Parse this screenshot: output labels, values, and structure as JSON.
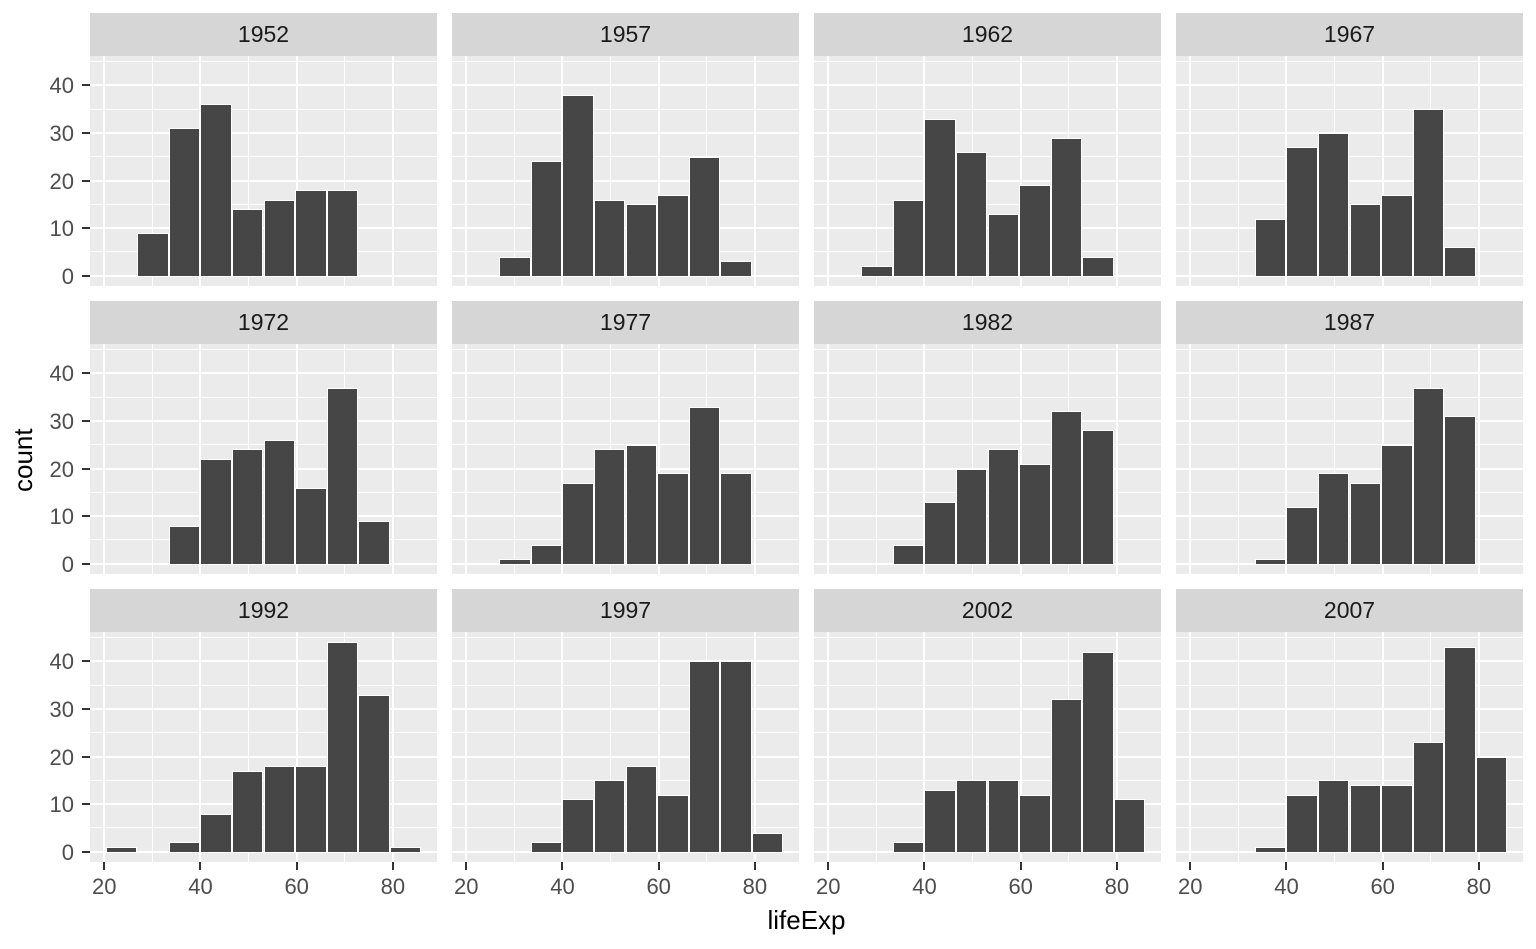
{
  "chart_data": {
    "type": "bar",
    "subtype": "faceted-histogram",
    "title": "",
    "xlabel": "lifeExp",
    "ylabel": "count",
    "legend": "none",
    "grid": "on",
    "x_tick_labels": [
      "20",
      "40",
      "60",
      "80"
    ],
    "x_tick_values": [
      20,
      40,
      60,
      80
    ],
    "x_minor_gridlines": [
      30,
      50,
      70
    ],
    "y_tick_labels": [
      "0",
      "10",
      "20",
      "30",
      "40"
    ],
    "y_tick_values": [
      0,
      10,
      20,
      30,
      40
    ],
    "y_minor_gridlines": [
      5,
      15,
      25,
      35,
      45
    ],
    "x_domain": [
      17.04,
      89.16
    ],
    "y_domain": [
      -2.2,
      46.2
    ],
    "bin_edges": [
      20.32,
      26.88,
      33.43,
      39.99,
      46.55,
      53.1,
      59.66,
      66.21,
      72.77,
      79.33,
      85.88
    ],
    "facets": [
      {
        "year": "1952",
        "counts": [
          0,
          9,
          31,
          36,
          14,
          16,
          18,
          18,
          0,
          0
        ]
      },
      {
        "year": "1957",
        "counts": [
          0,
          4,
          24,
          38,
          16,
          15,
          17,
          25,
          3,
          0
        ]
      },
      {
        "year": "1962",
        "counts": [
          0,
          2,
          16,
          33,
          26,
          13,
          19,
          29,
          4,
          0
        ]
      },
      {
        "year": "1967",
        "counts": [
          0,
          0,
          12,
          27,
          30,
          15,
          17,
          35,
          6,
          0
        ]
      },
      {
        "year": "1972",
        "counts": [
          0,
          0,
          8,
          22,
          24,
          26,
          16,
          37,
          9,
          0
        ]
      },
      {
        "year": "1977",
        "counts": [
          0,
          1,
          4,
          17,
          24,
          25,
          19,
          33,
          19,
          0
        ]
      },
      {
        "year": "1982",
        "counts": [
          0,
          0,
          4,
          13,
          20,
          24,
          21,
          32,
          28,
          0
        ]
      },
      {
        "year": "1987",
        "counts": [
          0,
          0,
          1,
          12,
          19,
          17,
          25,
          37,
          31,
          0
        ]
      },
      {
        "year": "1992",
        "counts": [
          1,
          0,
          2,
          8,
          17,
          18,
          18,
          44,
          33,
          1
        ]
      },
      {
        "year": "1997",
        "counts": [
          0,
          0,
          2,
          11,
          15,
          18,
          12,
          40,
          40,
          4
        ]
      },
      {
        "year": "2002",
        "counts": [
          0,
          0,
          2,
          13,
          15,
          15,
          12,
          32,
          42,
          11
        ]
      },
      {
        "year": "2007",
        "counts": [
          0,
          0,
          1,
          12,
          15,
          14,
          14,
          23,
          43,
          20
        ]
      }
    ],
    "colors": {
      "bar_fill": "#464646",
      "bar_outline": "#ffffff",
      "panel_background": "#ebebeb",
      "strip_background": "#d6d6d6",
      "gridline": "#ffffff",
      "axis_text": "#4d4d4d",
      "tick_mark": "#333333",
      "strip_text": "#1a1a1a",
      "axis_title": "#000000"
    }
  }
}
